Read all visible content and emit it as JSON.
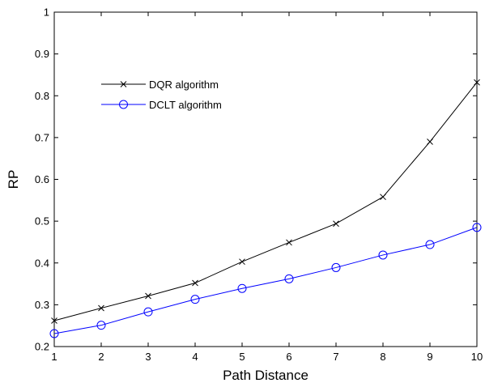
{
  "chart_data": {
    "type": "line",
    "xlabel": "Path Distance",
    "ylabel": "RP",
    "xlim": [
      1,
      10
    ],
    "ylim": [
      0.2,
      1
    ],
    "x_ticks": [
      "1",
      "2",
      "3",
      "4",
      "5",
      "6",
      "7",
      "8",
      "9",
      "10"
    ],
    "y_ticks": [
      "0.2",
      "0.3",
      "0.4",
      "0.5",
      "0.6",
      "0.7",
      "0.8",
      "0.9",
      "1"
    ],
    "grid": false,
    "legend_position": "upper-left",
    "x": [
      1,
      2,
      3,
      4,
      5,
      6,
      7,
      8,
      9,
      10
    ],
    "series": [
      {
        "name": "DQR algorithm",
        "color": "#000000",
        "marker": "x",
        "values": [
          0.262,
          0.292,
          0.321,
          0.352,
          0.403,
          0.449,
          0.494,
          0.558,
          0.69,
          0.832
        ]
      },
      {
        "name": "DCLT algorithm",
        "color": "#0000ff",
        "marker": "circle",
        "values": [
          0.231,
          0.251,
          0.283,
          0.313,
          0.339,
          0.362,
          0.389,
          0.419,
          0.444,
          0.485
        ]
      }
    ]
  }
}
